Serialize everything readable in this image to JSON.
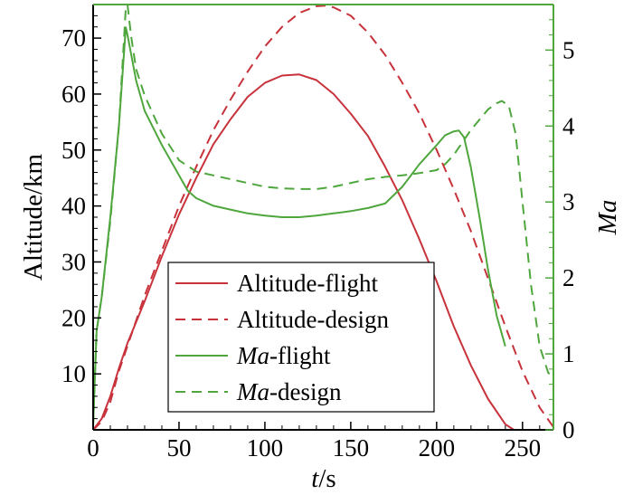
{
  "chart_data": {
    "type": "line",
    "xlabel": {
      "italic": "t",
      "rest": "/s"
    },
    "ylabel_left": "Altitude/km",
    "ylabel_right": {
      "italic": "Ma",
      "rest": ""
    },
    "xlim": [
      0,
      268
    ],
    "ylim_left": [
      0,
      76
    ],
    "ylim_right": [
      0,
      5.6
    ],
    "xticks": [
      0,
      50,
      100,
      150,
      200,
      250
    ],
    "yticks_left": [
      10,
      20,
      30,
      40,
      50,
      60,
      70
    ],
    "yticks_right": [
      0,
      1,
      2,
      3,
      4,
      5
    ],
    "grid": false,
    "legend_position": "lower-center",
    "colors": {
      "red": "#c8323b",
      "green": "#4ea63d"
    },
    "series": [
      {
        "name": "Altitude-flight",
        "legend": {
          "italic": "",
          "rest": "Altitude-flight"
        },
        "axis": "left",
        "color": "#c8323b",
        "dash": "solid",
        "x": [
          0,
          5,
          10,
          15,
          20,
          30,
          40,
          50,
          60,
          70,
          80,
          90,
          100,
          110,
          120,
          130,
          140,
          150,
          160,
          170,
          180,
          190,
          200,
          210,
          220,
          230,
          240,
          245
        ],
        "y": [
          0,
          2,
          6,
          11,
          15.5,
          23,
          31,
          38.5,
          45,
          51,
          55.5,
          59.5,
          62,
          63.3,
          63.5,
          62.5,
          60,
          56.5,
          52.5,
          47,
          41,
          34,
          26.5,
          18.5,
          11.5,
          5.5,
          1,
          0
        ]
      },
      {
        "name": "Altitude-design",
        "legend": {
          "italic": "",
          "rest": "Altitude-design"
        },
        "axis": "left",
        "color": "#c8323b",
        "dash": "dashed",
        "x": [
          0,
          5,
          10,
          15,
          20,
          30,
          40,
          50,
          60,
          70,
          80,
          90,
          100,
          110,
          120,
          130,
          135,
          140,
          150,
          160,
          170,
          180,
          190,
          200,
          210,
          220,
          230,
          240,
          250,
          260,
          268
        ],
        "y": [
          0,
          1.5,
          5,
          10.5,
          15,
          24,
          32,
          40,
          47,
          53.5,
          59,
          64,
          68.5,
          72,
          74.5,
          75.7,
          75.8,
          75.5,
          74,
          71,
          67,
          62,
          56.5,
          50,
          43,
          35.5,
          27,
          18.5,
          10.5,
          4,
          0.5
        ]
      },
      {
        "name": "Ma-flight",
        "legend": {
          "italic": "Ma",
          "rest": "-flight"
        },
        "axis": "right",
        "color": "#4ea63d",
        "dash": "solid",
        "x": [
          0,
          2,
          5,
          10,
          15,
          19,
          20,
          25,
          30,
          40,
          50,
          55,
          60,
          70,
          80,
          90,
          100,
          110,
          120,
          130,
          140,
          150,
          160,
          170,
          180,
          190,
          200,
          205,
          210,
          213,
          216,
          220,
          225,
          230,
          235,
          240
        ],
        "y": [
          0.05,
          1.3,
          1.75,
          2.8,
          4.0,
          5.3,
          5.2,
          4.6,
          4.2,
          3.75,
          3.35,
          3.15,
          3.05,
          2.95,
          2.9,
          2.85,
          2.82,
          2.8,
          2.8,
          2.82,
          2.85,
          2.88,
          2.92,
          2.98,
          3.2,
          3.5,
          3.75,
          3.88,
          3.93,
          3.94,
          3.85,
          3.45,
          2.8,
          2.1,
          1.5,
          1.1
        ]
      },
      {
        "name": "Ma-design",
        "legend": {
          "italic": "Ma",
          "rest": "-design"
        },
        "axis": "right",
        "color": "#4ea63d",
        "dash": "dashed",
        "x": [
          0,
          2,
          5,
          10,
          15,
          19,
          20,
          22,
          25,
          30,
          40,
          50,
          60,
          70,
          80,
          90,
          100,
          110,
          120,
          130,
          140,
          150,
          160,
          170,
          180,
          190,
          200,
          205,
          210,
          220,
          230,
          235,
          238,
          242,
          246,
          250,
          255,
          260,
          265,
          268
        ],
        "y": [
          0.05,
          1.3,
          1.75,
          2.75,
          4.0,
          5.55,
          5.6,
          5.2,
          4.75,
          4.4,
          3.9,
          3.55,
          3.4,
          3.35,
          3.3,
          3.25,
          3.2,
          3.18,
          3.17,
          3.17,
          3.2,
          3.25,
          3.3,
          3.33,
          3.35,
          3.38,
          3.42,
          3.5,
          3.62,
          3.95,
          4.22,
          4.3,
          4.33,
          4.27,
          3.9,
          3.0,
          1.9,
          1.1,
          0.75,
          0.7
        ]
      }
    ]
  }
}
